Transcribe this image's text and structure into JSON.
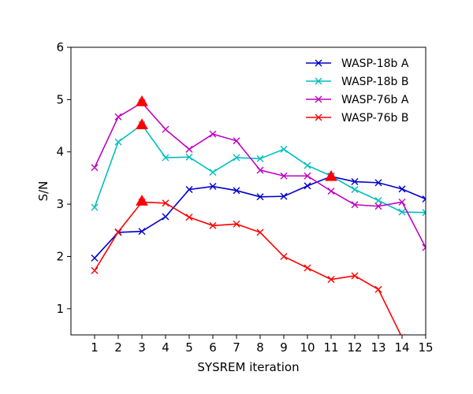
{
  "chart_data": {
    "type": "line",
    "title": "",
    "xlabel": "SYSREM iteration",
    "ylabel": "S/N",
    "xlim": [
      0,
      15
    ],
    "ylim": [
      0.5,
      6
    ],
    "xticks": [
      1,
      2,
      3,
      4,
      5,
      6,
      7,
      8,
      9,
      10,
      11,
      12,
      13,
      14,
      15
    ],
    "yticks": [
      1,
      2,
      3,
      4,
      5,
      6
    ],
    "grid": false,
    "legend_position": "top-right",
    "x": [
      1,
      2,
      3,
      4,
      5,
      6,
      7,
      8,
      9,
      10,
      11,
      12,
      13,
      14,
      15
    ],
    "series": [
      {
        "name": "WASP-18b A",
        "color": "#0000cc",
        "values": [
          1.97,
          2.46,
          2.48,
          2.76,
          3.28,
          3.34,
          3.26,
          3.14,
          3.15,
          3.35,
          3.53,
          3.43,
          3.41,
          3.29,
          3.1
        ]
      },
      {
        "name": "WASP-18b B",
        "color": "#00bfbf",
        "values": [
          2.94,
          4.19,
          4.52,
          3.89,
          3.9,
          3.61,
          3.89,
          3.87,
          4.05,
          3.74,
          3.54,
          3.28,
          3.07,
          2.85,
          2.84
        ]
      },
      {
        "name": "WASP-76b A",
        "color": "#bf00bf",
        "values": [
          3.7,
          4.67,
          4.94,
          4.43,
          4.05,
          4.34,
          4.21,
          3.65,
          3.54,
          3.54,
          3.25,
          2.99,
          2.96,
          3.04,
          2.17
        ]
      },
      {
        "name": "WASP-76b B",
        "color": "#ff0000",
        "values": [
          1.73,
          2.47,
          3.04,
          3.02,
          2.75,
          2.59,
          2.62,
          2.46,
          2.0,
          1.78,
          1.56,
          1.63,
          1.37,
          0.45,
          null
        ]
      }
    ],
    "highlights": [
      {
        "x": 3,
        "y": 4.96,
        "color": "#ff0000",
        "marker": "triangle"
      },
      {
        "x": 3,
        "y": 4.52,
        "color": "#ff0000",
        "marker": "triangle"
      },
      {
        "x": 3,
        "y": 3.06,
        "color": "#ff0000",
        "marker": "triangle"
      },
      {
        "x": 11,
        "y": 3.53,
        "color": "#ff0000",
        "marker": "triangle"
      }
    ]
  }
}
